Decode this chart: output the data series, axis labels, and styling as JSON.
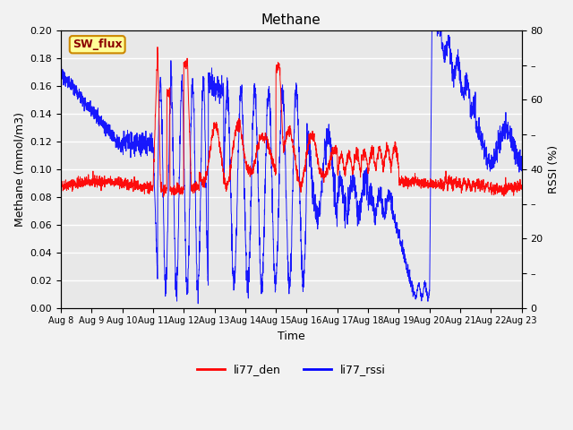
{
  "title": "Methane",
  "ylabel_left": "Methane (mmol/m3)",
  "ylabel_right": "RSSI (%)",
  "xlabel": "Time",
  "ylim_left": [
    0.0,
    0.2
  ],
  "ylim_right": [
    0,
    80
  ],
  "bg_color": "#e8e8e8",
  "fig_bg": "#f2f2f2",
  "sw_flux_label": "SW_flux",
  "sw_flux_bg": "#ffff99",
  "sw_flux_border": "#cc8800",
  "line_red_color": "red",
  "line_blue_color": "blue",
  "x_tick_labels": [
    "Aug 8",
    "Aug 9",
    "Aug 10",
    "Aug 11",
    "Aug 12",
    "Aug 13",
    "Aug 14",
    "Aug 15",
    "Aug 16",
    "Aug 17",
    "Aug 18",
    "Aug 19",
    "Aug 20",
    "Aug 21",
    "Aug 22",
    "Aug 23"
  ],
  "n_points": 3000,
  "seed": 42
}
